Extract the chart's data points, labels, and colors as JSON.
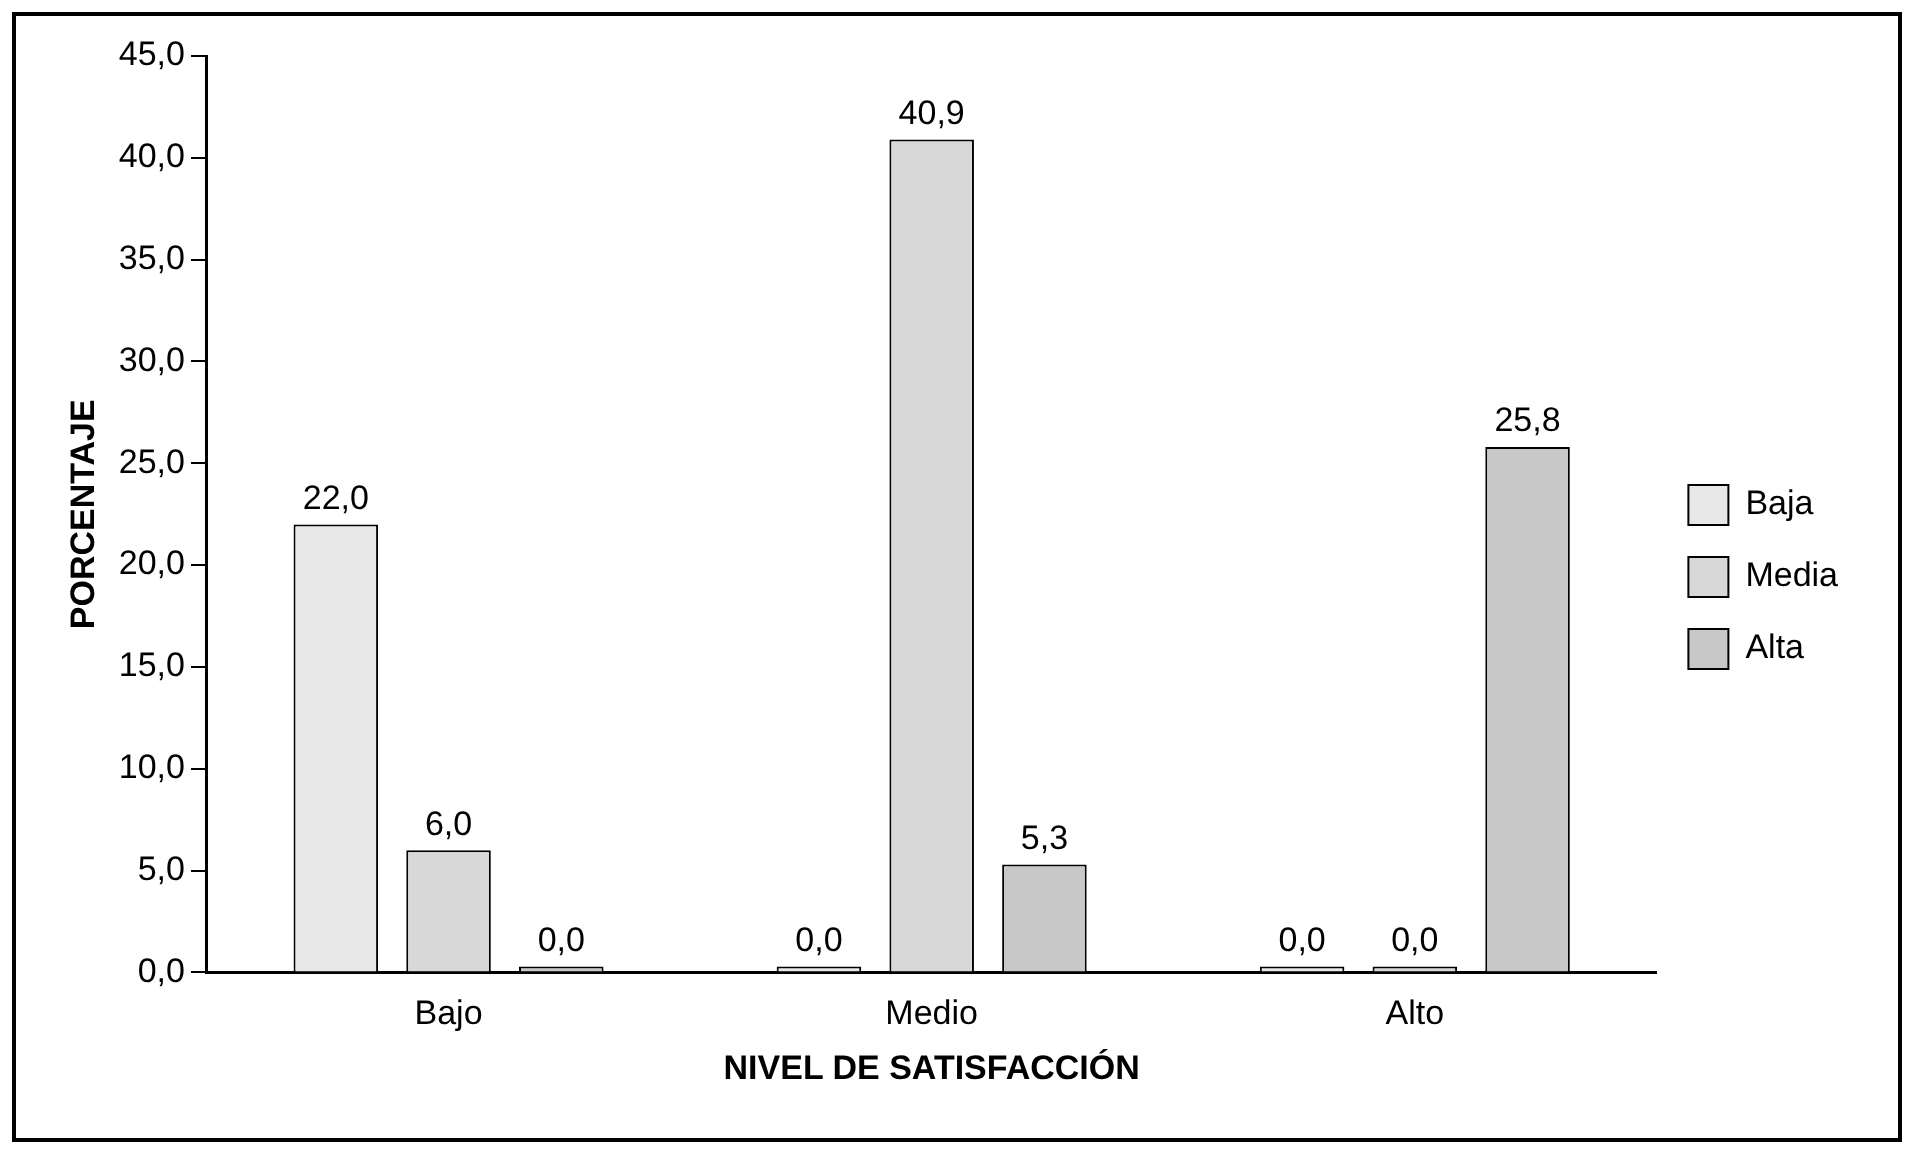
{
  "chart_data": {
    "type": "bar",
    "xlabel": "NIVEL DE SATISFACCIÓN",
    "ylabel": "PORCENTAJE",
    "categories": [
      "Bajo",
      "Medio",
      "Alto"
    ],
    "series": [
      {
        "name": "Baja",
        "color": "#e8e8e8",
        "values": [
          22.0,
          0.0,
          0.0
        ],
        "value_labels": [
          "22,0",
          "0,0",
          "0,0"
        ]
      },
      {
        "name": "Media",
        "color": "#d8d8d8",
        "values": [
          6.0,
          40.9,
          0.0
        ],
        "value_labels": [
          "6,0",
          "40,9",
          "0,0"
        ]
      },
      {
        "name": "Alta",
        "color": "#c8c8c8",
        "values": [
          0.0,
          5.3,
          25.8
        ],
        "value_labels": [
          "0,0",
          "5,3",
          "25,8"
        ]
      }
    ],
    "ylim": [
      0,
      45
    ],
    "yticks": [
      {
        "value": 0,
        "label": "0,0"
      },
      {
        "value": 5,
        "label": "5,0"
      },
      {
        "value": 10,
        "label": "10,0"
      },
      {
        "value": 15,
        "label": "15,0"
      },
      {
        "value": 20,
        "label": "20,0"
      },
      {
        "value": 25,
        "label": "25,0"
      },
      {
        "value": 30,
        "label": "30,0"
      },
      {
        "value": 35,
        "label": "35,0"
      },
      {
        "value": 40,
        "label": "40,0"
      },
      {
        "value": 45,
        "label": "45,0"
      }
    ],
    "grid": false,
    "legend": "right"
  }
}
